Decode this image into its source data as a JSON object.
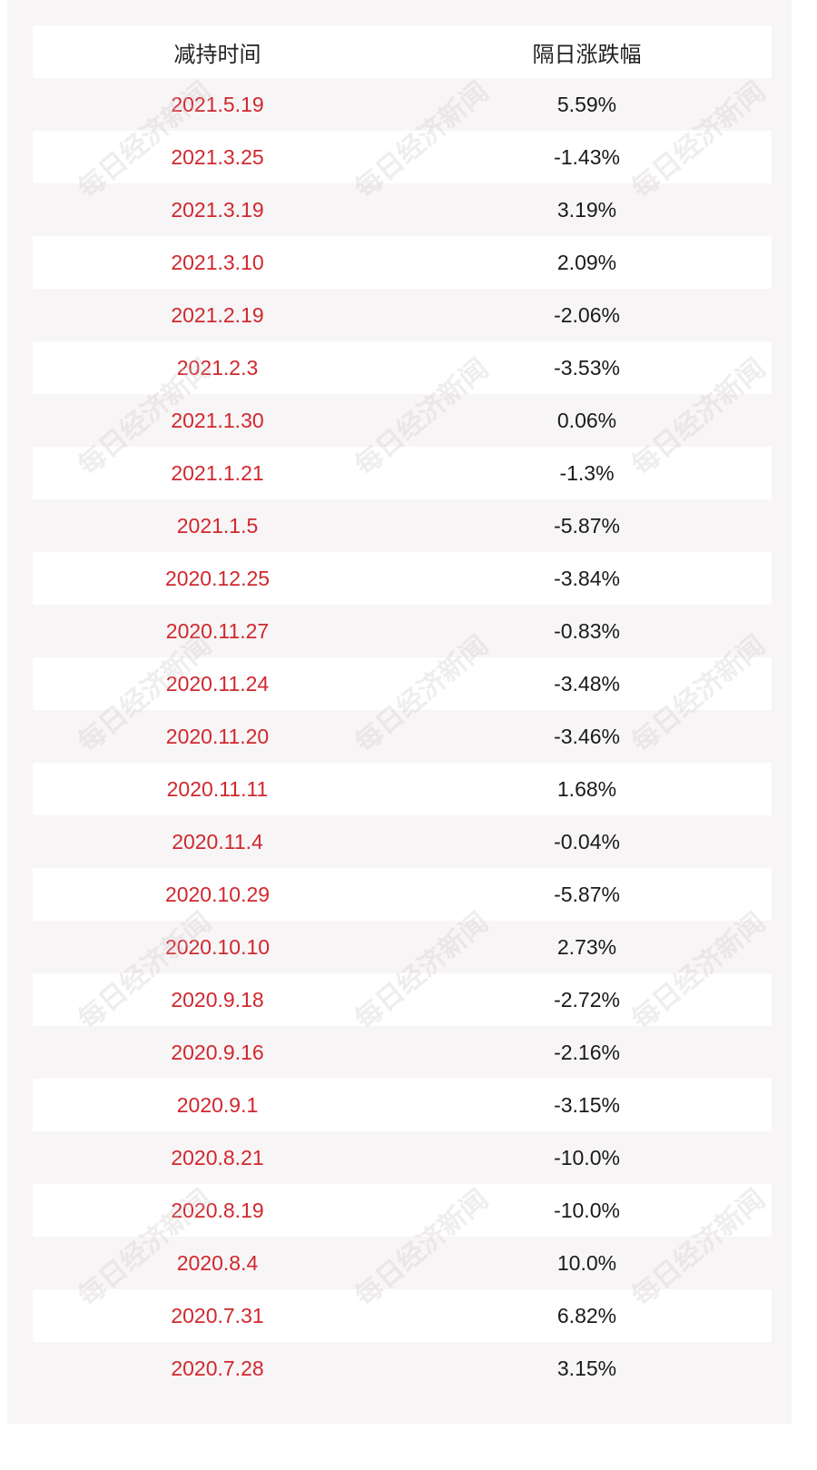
{
  "table": {
    "headers": {
      "date": "减持时间",
      "change": "隔日涨跌幅"
    },
    "rows": [
      {
        "date": "2021.5.19",
        "change": "5.59%"
      },
      {
        "date": "2021.3.25",
        "change": "-1.43%"
      },
      {
        "date": "2021.3.19",
        "change": "3.19%"
      },
      {
        "date": "2021.3.10",
        "change": "2.09%"
      },
      {
        "date": "2021.2.19",
        "change": "-2.06%"
      },
      {
        "date": "2021.2.3",
        "change": "-3.53%"
      },
      {
        "date": "2021.1.30",
        "change": "0.06%"
      },
      {
        "date": "2021.1.21",
        "change": "-1.3%"
      },
      {
        "date": "2021.1.5",
        "change": "-5.87%"
      },
      {
        "date": "2020.12.25",
        "change": "-3.84%"
      },
      {
        "date": "2020.11.27",
        "change": "-0.83%"
      },
      {
        "date": "2020.11.24",
        "change": "-3.48%"
      },
      {
        "date": "2020.11.20",
        "change": "-3.46%"
      },
      {
        "date": "2020.11.11",
        "change": "1.68%"
      },
      {
        "date": "2020.11.4",
        "change": "-0.04%"
      },
      {
        "date": "2020.10.29",
        "change": "-5.87%"
      },
      {
        "date": "2020.10.10",
        "change": "2.73%"
      },
      {
        "date": "2020.9.18",
        "change": "-2.72%"
      },
      {
        "date": "2020.9.16",
        "change": "-2.16%"
      },
      {
        "date": "2020.9.1",
        "change": "-3.15%"
      },
      {
        "date": "2020.8.21",
        "change": "-10.0%"
      },
      {
        "date": "2020.8.19",
        "change": "-10.0%"
      },
      {
        "date": "2020.8.4",
        "change": "10.0%"
      },
      {
        "date": "2020.7.31",
        "change": "6.82%"
      },
      {
        "date": "2020.7.28",
        "change": "3.15%"
      }
    ]
  },
  "watermark": {
    "text": "每日经济新闻"
  },
  "colors": {
    "date_text": "#d0282e",
    "change_text": "#1a1a1a",
    "panel_bg": "#f8f5f6"
  }
}
